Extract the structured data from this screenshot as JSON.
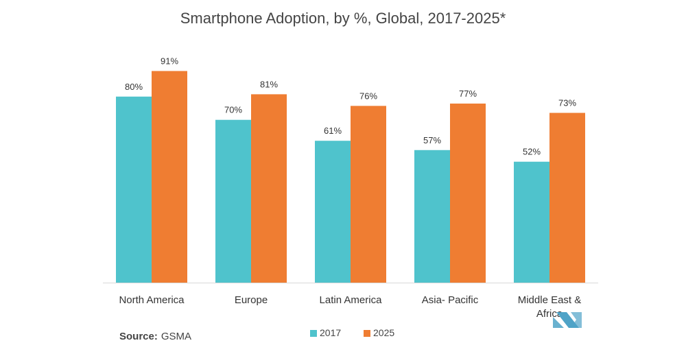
{
  "chart_data": {
    "type": "bar",
    "title": "Smartphone Adoption, by %, Global, 2017-2025*",
    "categories": [
      [
        "North America"
      ],
      [
        "Europe"
      ],
      [
        "Latin America"
      ],
      [
        "Asia- Pacific"
      ],
      [
        "Middle East &",
        "Africa"
      ]
    ],
    "series": [
      {
        "name": "2017",
        "color": "#4fc3cc",
        "values": [
          80,
          70,
          61,
          57,
          52
        ],
        "labels": [
          "80%",
          "70%",
          "61%",
          "57%",
          "52%"
        ]
      },
      {
        "name": "2025",
        "color": "#ef7d32",
        "values": [
          91,
          81,
          76,
          77,
          73
        ],
        "labels": [
          "91%",
          "81%",
          "76%",
          "77%",
          "73%"
        ]
      }
    ],
    "ylim": [
      0,
      100
    ],
    "grid": false,
    "legend_position": "bottom-center"
  },
  "source": {
    "label": "Source:",
    "value": "GSMA"
  },
  "logo": {
    "icon": "mordor-intelligence-logo-icon",
    "color": "#4fa3c7"
  }
}
